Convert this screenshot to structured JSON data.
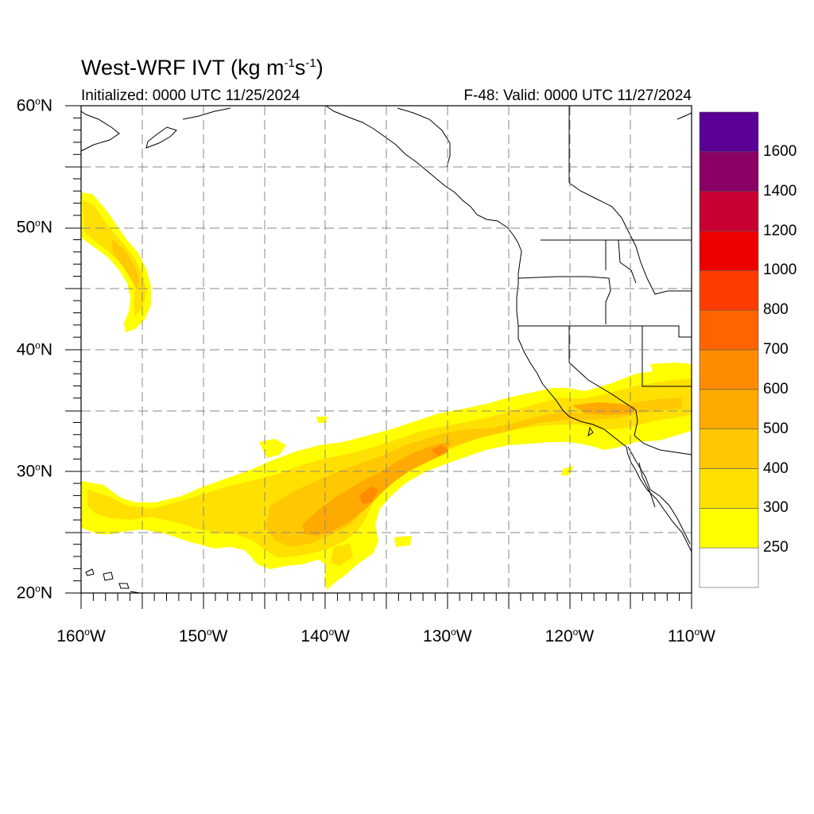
{
  "title": {
    "main": "West-WRF IVT (kg m",
    "exp1": "-1",
    "mid": "s",
    "exp2": "-1",
    "end": ")"
  },
  "subtitle": {
    "initialized": "Initialized: 0000 UTC 11/25/2024",
    "valid": "F-48: Valid: 0000 UTC 11/27/2024"
  },
  "map": {
    "lat_range": [
      20,
      60
    ],
    "lon_range": [
      -160,
      -110
    ],
    "gridlines": "dashed, every 5 degrees",
    "lat_labels": [
      {
        "n": "60",
        "s": "N",
        "lat": 60
      },
      {
        "n": "50",
        "s": "N",
        "lat": 50
      },
      {
        "n": "40",
        "s": "N",
        "lat": 40
      },
      {
        "n": "30",
        "s": "N",
        "lat": 30
      },
      {
        "n": "20",
        "s": "N",
        "lat": 20
      }
    ],
    "lon_labels": [
      {
        "n": "160",
        "s": "W",
        "lon": -160
      },
      {
        "n": "150",
        "s": "W",
        "lon": -150
      },
      {
        "n": "140",
        "s": "W",
        "lon": -140
      },
      {
        "n": "130",
        "s": "W",
        "lon": -130
      },
      {
        "n": "120",
        "s": "W",
        "lon": -120
      },
      {
        "n": "110",
        "s": "W",
        "lon": -110
      }
    ]
  },
  "colorbar": {
    "levels": [
      "250",
      "300",
      "400",
      "500",
      "600",
      "700",
      "800",
      "1000",
      "1200",
      "1400",
      "1600"
    ],
    "colors": [
      "#ffffff",
      "#ffff00",
      "#ffe000",
      "#ffc800",
      "#ffaa00",
      "#ff8c00",
      "#ff6400",
      "#ff3c00",
      "#ee0000",
      "#c80032",
      "#8b0064",
      "#5a0096"
    ]
  },
  "chart_data": {
    "type": "heatmap",
    "variable": "IVT",
    "units": "kg m-1 s-1",
    "features": [
      {
        "feature": "northwest moisture plume",
        "lon_range": [
          -160,
          -155
        ],
        "lat_range": [
          41,
          53
        ],
        "max_ivt": 400
      },
      {
        "feature": "atmospheric river main band",
        "lon_range": [
          -160,
          -110
        ],
        "lat_range": [
          20,
          39
        ],
        "max_ivt": 600,
        "core_lon": [
          -142,
          -130
        ],
        "core_lat": [
          24,
          32
        ]
      }
    ]
  }
}
